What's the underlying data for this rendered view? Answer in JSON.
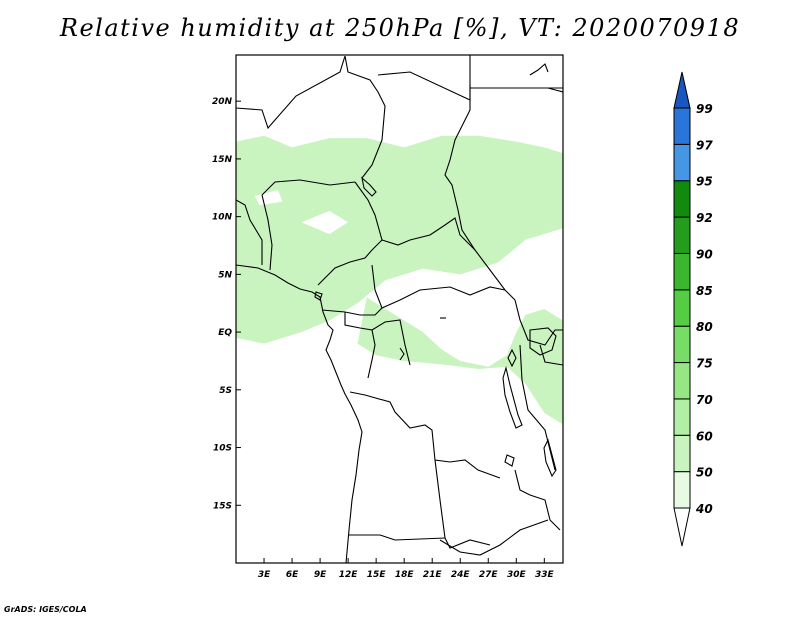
{
  "title": "Relative humidity at 250hPa [%], VT: 2020070918",
  "credit": "GrADS: IGES/COLA",
  "chart_data": {
    "type": "heatmap",
    "variable": "Relative humidity",
    "level": "250hPa",
    "units": "%",
    "valid_time": "2020070918",
    "lon_range": [
      0,
      35
    ],
    "lat_range": [
      -20,
      24
    ],
    "x_ticks": [
      {
        "value": 3,
        "label": "3E"
      },
      {
        "value": 6,
        "label": "6E"
      },
      {
        "value": 9,
        "label": "9E"
      },
      {
        "value": 12,
        "label": "12E"
      },
      {
        "value": 15,
        "label": "15E"
      },
      {
        "value": 18,
        "label": "18E"
      },
      {
        "value": 21,
        "label": "21E"
      },
      {
        "value": 24,
        "label": "24E"
      },
      {
        "value": 27,
        "label": "27E"
      },
      {
        "value": 30,
        "label": "30E"
      },
      {
        "value": 33,
        "label": "33E"
      }
    ],
    "y_ticks": [
      {
        "value": 20,
        "label": "20N"
      },
      {
        "value": 15,
        "label": "15N"
      },
      {
        "value": 10,
        "label": "10N"
      },
      {
        "value": 5,
        "label": "5N"
      },
      {
        "value": 0,
        "label": "EQ"
      },
      {
        "value": -5,
        "label": "5S"
      },
      {
        "value": -10,
        "label": "10S"
      },
      {
        "value": -15,
        "label": "15S"
      }
    ],
    "colorbar": {
      "levels": [
        "40",
        "50",
        "60",
        "70",
        "75",
        "80",
        "85",
        "90",
        "92",
        "95",
        "97",
        "99"
      ],
      "colors": [
        "#ffffff",
        "#e6fbe1",
        "#c9f4c0",
        "#b1f0a4",
        "#96e684",
        "#77dd66",
        "#55cc44",
        "#3ab72e",
        "#259c1d",
        "#128a10",
        "#4696e6",
        "#2c75d8",
        "#1a55c0"
      ]
    },
    "humid_regions": [
      {
        "level": "60-70",
        "polygon": [
          [
            0,
            16.5
          ],
          [
            3,
            17
          ],
          [
            6,
            16
          ],
          [
            10,
            16.8
          ],
          [
            14,
            16.8
          ],
          [
            18,
            16
          ],
          [
            22,
            17
          ],
          [
            26,
            17
          ],
          [
            30,
            16.5
          ],
          [
            33,
            16
          ],
          [
            35,
            15.5
          ],
          [
            35,
            9
          ],
          [
            31,
            8
          ],
          [
            28,
            6
          ],
          [
            24,
            5
          ],
          [
            20,
            5.5
          ],
          [
            16,
            4.5
          ],
          [
            13,
            2.5
          ],
          [
            10,
            1
          ],
          [
            7,
            0
          ],
          [
            3,
            -1
          ],
          [
            0,
            -0.5
          ]
        ]
      },
      {
        "level": "60-70",
        "polygon": [
          [
            14,
            3
          ],
          [
            18,
            1
          ],
          [
            20,
            0
          ],
          [
            22,
            -1.5
          ],
          [
            24,
            -2.5
          ],
          [
            27,
            -3
          ],
          [
            29,
            -2
          ],
          [
            30,
            0
          ],
          [
            31,
            1.5
          ],
          [
            33,
            2
          ],
          [
            35,
            1
          ],
          [
            35,
            -8
          ],
          [
            33,
            -7
          ],
          [
            31,
            -4.5
          ],
          [
            29,
            -3
          ],
          [
            26,
            -3.2
          ],
          [
            22,
            -2.8
          ],
          [
            18,
            -2.5
          ],
          [
            15,
            -2
          ],
          [
            13,
            -1
          ]
        ]
      }
    ],
    "dry_patches": [
      {
        "polygon": [
          [
            18,
            3.5
          ],
          [
            21,
            4.5
          ],
          [
            24,
            3.5
          ],
          [
            26,
            2
          ],
          [
            25,
            0
          ],
          [
            22,
            -0.5
          ],
          [
            20,
            0.5
          ],
          [
            18,
            2
          ]
        ]
      },
      {
        "polygon": [
          [
            7,
            9.5
          ],
          [
            10,
            10.5
          ],
          [
            12,
            9.5
          ],
          [
            10,
            8.5
          ]
        ]
      },
      {
        "polygon": [
          [
            29,
            5.5
          ],
          [
            31,
            6
          ],
          [
            31.5,
            4
          ],
          [
            30,
            3.5
          ]
        ]
      },
      {
        "polygon": [
          [
            2,
            11.8
          ],
          [
            4.5,
            12.3
          ],
          [
            5,
            11.3
          ],
          [
            2.5,
            11
          ]
        ]
      }
    ]
  }
}
